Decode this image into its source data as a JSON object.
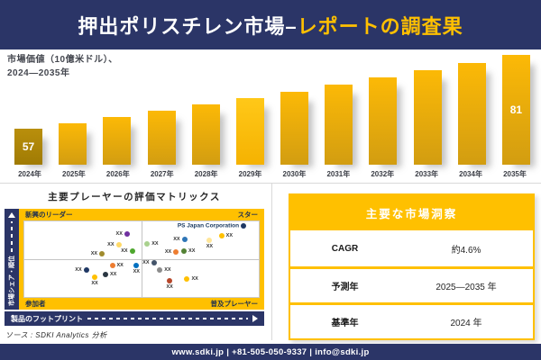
{
  "colors": {
    "navy": "#2B3567",
    "gold": "#FFC000",
    "divider": "#D9D9D9",
    "bar_top": "#FCB906",
    "bar_bottom": "#D29D11",
    "bar_first_top": "#B98F0C",
    "bar_first_bottom": "#A07B04",
    "bar_bright_top": "#FFC818",
    "bar_bright_bottom": "#F5B201"
  },
  "header": {
    "title_white": "押出ポリスチレン市場–",
    "title_gold": "レポートの調査果"
  },
  "chart_data": [
    {
      "type": "bar",
      "title": "市場価値（10億米ドル）、2024—2035年",
      "subtitle_line1": "市場価値（10億米ドル）、",
      "subtitle_line2": "2024—2035年",
      "ylabel": "市場価値（10億米ドル）",
      "xlabel": "",
      "categories": [
        "2024年",
        "2025年",
        "2026年",
        "2027年",
        "2028年",
        "2029年",
        "2030年",
        "2031年",
        "2032年",
        "2033年",
        "2034年",
        "2035年"
      ],
      "values": [
        57,
        58.9,
        60.8,
        62.8,
        64.8,
        66.9,
        69.1,
        71.4,
        73.7,
        76.1,
        78.5,
        81
      ],
      "bar_labels": [
        "57",
        "",
        "",
        "",
        "",
        "",
        "",
        "",
        "",
        "",
        "",
        "81"
      ],
      "labeled_values": {
        "2024年": 57,
        "2035年": 81
      },
      "variants": [
        "first",
        "",
        "",
        "",
        "",
        "bright",
        "",
        "",
        "",
        "",
        "",
        ""
      ],
      "ylim": [
        45,
        85
      ],
      "grid": false,
      "legend": false
    },
    {
      "type": "scatter",
      "title": "主要プレーヤーの評価マトリックス",
      "xlabel": "製品のフットプリント",
      "ylabel": "市場シェア・順位",
      "quadrants": {
        "top_left": "新興のリーダー",
        "top_right": "スター",
        "bottom_left": "参加者",
        "bottom_right": "普及プレーヤー"
      },
      "points": [
        {
          "x_pct": 43.8,
          "y_pct": 16.7,
          "color": "#7030A0",
          "label": "XX",
          "label_pos": "left"
        },
        {
          "x_pct": 40.2,
          "y_pct": 30.6,
          "color": "#FFD966",
          "label": "XX",
          "label_pos": "left"
        },
        {
          "x_pct": 46.0,
          "y_pct": 39.6,
          "color": "#4EA72E",
          "label": "XX",
          "label_pos": "left"
        },
        {
          "x_pct": 33.1,
          "y_pct": 42.5,
          "color": "#A08B2D",
          "label": "XX",
          "label_pos": "left"
        },
        {
          "x_pct": 93.5,
          "y_pct": 6.3,
          "color": "#1F3864",
          "label": "PS Japan Corporation",
          "label_pos": "left",
          "emphasis": true
        },
        {
          "x_pct": 84.1,
          "y_pct": 19.0,
          "color": "#FFC000",
          "label": "XX",
          "label_pos": "right"
        },
        {
          "x_pct": 79.0,
          "y_pct": 25.0,
          "color": "#FFE699",
          "label": "XX",
          "label_pos": "below"
        },
        {
          "x_pct": 68.3,
          "y_pct": 23.8,
          "color": "#2E75B6",
          "label": "XX",
          "label_pos": "left"
        },
        {
          "x_pct": 52.4,
          "y_pct": 30.1,
          "color": "#A9D18E",
          "label": "XX",
          "label_pos": "right"
        },
        {
          "x_pct": 64.7,
          "y_pct": 40.5,
          "color": "#ED7D31",
          "label": "XX",
          "label_pos": "left"
        },
        {
          "x_pct": 68.1,
          "y_pct": 39.3,
          "color": "#548235",
          "label": "XX",
          "label_pos": "right"
        },
        {
          "x_pct": 37.5,
          "y_pct": 58.3,
          "color": "#ED7D31",
          "label": "XX",
          "label_pos": "right"
        },
        {
          "x_pct": 47.8,
          "y_pct": 58.3,
          "color": "#0070C0",
          "label": "XX",
          "label_pos": "below"
        },
        {
          "x_pct": 26.4,
          "y_pct": 64.3,
          "color": "#1F3864",
          "label": "XX",
          "label_pos": "left"
        },
        {
          "x_pct": 34.6,
          "y_pct": 70.6,
          "color": "#2A3642",
          "label": "XX",
          "label_pos": "right"
        },
        {
          "x_pct": 30.0,
          "y_pct": 74.2,
          "color": "#FFC000",
          "label": "XX",
          "label_pos": "below"
        },
        {
          "x_pct": 55.2,
          "y_pct": 54.4,
          "color": "#44546A",
          "label": "XX",
          "label_pos": "left"
        },
        {
          "x_pct": 57.8,
          "y_pct": 63.9,
          "color": "#8C8C8C",
          "label": "XX",
          "label_pos": "right"
        },
        {
          "x_pct": 62.0,
          "y_pct": 78.6,
          "color": "#B7472A",
          "label": "XX",
          "label_pos": "below"
        },
        {
          "x_pct": 69.4,
          "y_pct": 76.2,
          "color": "#FFC000",
          "label": "XX",
          "label_pos": "right"
        }
      ]
    }
  ],
  "source_note": "ソース : SDKI Analytics 分析",
  "insights": {
    "title": "主要な市場洞察",
    "rows": [
      {
        "label": "CAGR",
        "value": "約4.6%"
      },
      {
        "label": "予測年",
        "value": "2025—2035 年"
      },
      {
        "label": "基準年",
        "value": "2024 年"
      }
    ]
  },
  "footer": {
    "text": "www.sdki.jp | +81-505-050-9337 | info@sdki.jp"
  }
}
